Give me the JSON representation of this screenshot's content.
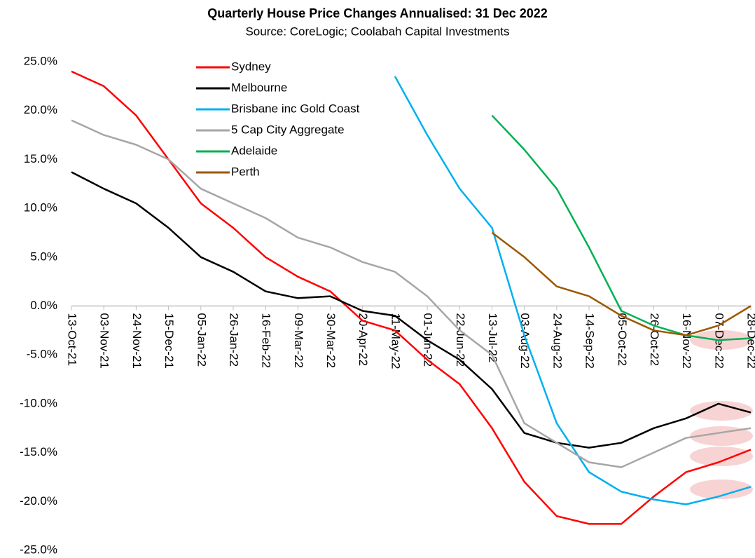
{
  "chart_data": {
    "type": "line",
    "title": "Quarterly House Price Changes Annualised: 31 Dec 2022",
    "subtitle": "Source: CoreLogic; Coolabah Capital Investments",
    "x": [
      "2021-10-13",
      "2021-11-03",
      "2021-11-24",
      "2021-12-15",
      "2022-01-05",
      "2022-01-26",
      "2022-02-16",
      "2022-03-09",
      "2022-03-30",
      "2022-04-20",
      "2022-05-11",
      "2022-06-01",
      "2022-06-22",
      "2022-07-13",
      "2022-08-03",
      "2022-08-24",
      "2022-09-14",
      "2022-10-05",
      "2022-10-26",
      "2022-11-16",
      "2022-12-07",
      "2022-12-28"
    ],
    "series": [
      {
        "name": "Sydney",
        "color": "#ff0000",
        "values": [
          24,
          22.5,
          19.5,
          15,
          10.5,
          8,
          5,
          3,
          1.5,
          -1.5,
          -2.5,
          -5.5,
          -8,
          -12.5,
          -18,
          -21.5,
          -22.3,
          -22.3,
          -19.5,
          -17,
          -16,
          -14.7
        ]
      },
      {
        "name": "Melbourne",
        "color": "#000000",
        "values": [
          13.7,
          12,
          10.5,
          8,
          5,
          3.5,
          1.5,
          0.8,
          1,
          -0.5,
          -1,
          -3.5,
          -5.5,
          -8.5,
          -13,
          -14,
          -14.5,
          -14,
          -12.5,
          -11.5,
          -10,
          -10.9
        ]
      },
      {
        "name": "Brisbane inc Gold Coast",
        "color": "#00b0f0",
        "values": [
          null,
          null,
          null,
          null,
          null,
          null,
          null,
          null,
          null,
          null,
          23.5,
          17.5,
          12,
          8,
          -3,
          -12,
          -17,
          -19,
          -19.8,
          -20.3,
          -19.5,
          -18.5
        ]
      },
      {
        "name": "5 Cap City Aggregate",
        "color": "#a6a6a6",
        "values": [
          19,
          17.5,
          16.5,
          15,
          12,
          10.5,
          9,
          7,
          6,
          4.5,
          3.5,
          1,
          -2.5,
          -5,
          -12,
          -14,
          -16,
          -16.5,
          -15,
          -13.5,
          -13,
          -12.5
        ]
      },
      {
        "name": "Adelaide",
        "color": "#00b050",
        "values": [
          null,
          null,
          null,
          null,
          null,
          null,
          null,
          null,
          null,
          null,
          null,
          null,
          null,
          19.5,
          16,
          12,
          6,
          -0.5,
          -2,
          -3,
          -3.5,
          -3.3
        ]
      },
      {
        "name": "Perth",
        "color": "#9c5700",
        "values": [
          null,
          null,
          null,
          null,
          null,
          null,
          null,
          null,
          null,
          null,
          null,
          null,
          null,
          7.5,
          5,
          2,
          1,
          -1,
          -2.5,
          -3,
          -2,
          0
        ]
      }
    ],
    "xlim": [
      "2021-10-13",
      "2022-12-28"
    ],
    "xticks": [
      {
        "value": "2021-10-13",
        "label": "13-Oct-21"
      },
      {
        "value": "2021-11-03",
        "label": "03-Nov-21"
      },
      {
        "value": "2021-11-24",
        "label": "24-Nov-21"
      },
      {
        "value": "2021-12-15",
        "label": "15-Dec-21"
      },
      {
        "value": "2022-01-05",
        "label": "05-Jan-22"
      },
      {
        "value": "2022-01-26",
        "label": "26-Jan-22"
      },
      {
        "value": "2022-02-16",
        "label": "16-Feb-22"
      },
      {
        "value": "2022-03-09",
        "label": "09-Mar-22"
      },
      {
        "value": "2022-03-30",
        "label": "30-Mar-22"
      },
      {
        "value": "2022-04-20",
        "label": "20-Apr-22"
      },
      {
        "value": "2022-05-11",
        "label": "11-May-22"
      },
      {
        "value": "2022-06-01",
        "label": "01-Jun-22"
      },
      {
        "value": "2022-06-22",
        "label": "22-Jun-22"
      },
      {
        "value": "2022-07-13",
        "label": "13-Jul-22"
      },
      {
        "value": "2022-08-03",
        "label": "03-Aug-22"
      },
      {
        "value": "2022-08-24",
        "label": "24-Aug-22"
      },
      {
        "value": "2022-09-14",
        "label": "14-Sep-22"
      },
      {
        "value": "2022-10-05",
        "label": "05-Oct-22"
      },
      {
        "value": "2022-10-26",
        "label": "26-Oct-22"
      },
      {
        "value": "2022-11-16",
        "label": "16-Nov-22"
      },
      {
        "value": "2022-12-07",
        "label": "07-Dec-22"
      },
      {
        "value": "2022-12-28",
        "label": "28-Dec-22"
      }
    ],
    "ylim": [
      -25,
      25
    ],
    "yticks": [
      {
        "value": -25,
        "label": "-25.0%"
      },
      {
        "value": -20,
        "label": "-20.0%"
      },
      {
        "value": -15,
        "label": "-15.0%"
      },
      {
        "value": -10,
        "label": "-10.0%"
      },
      {
        "value": -5,
        "label": "-5.0%"
      },
      {
        "value": 0,
        "label": "0.0%"
      },
      {
        "value": 5,
        "label": "5.0%"
      },
      {
        "value": 10,
        "label": "10.0%"
      },
      {
        "value": 15,
        "label": "15.0%"
      },
      {
        "value": 20,
        "label": "20.0%"
      },
      {
        "value": 25,
        "label": "25.0%"
      }
    ],
    "grid": false
  }
}
